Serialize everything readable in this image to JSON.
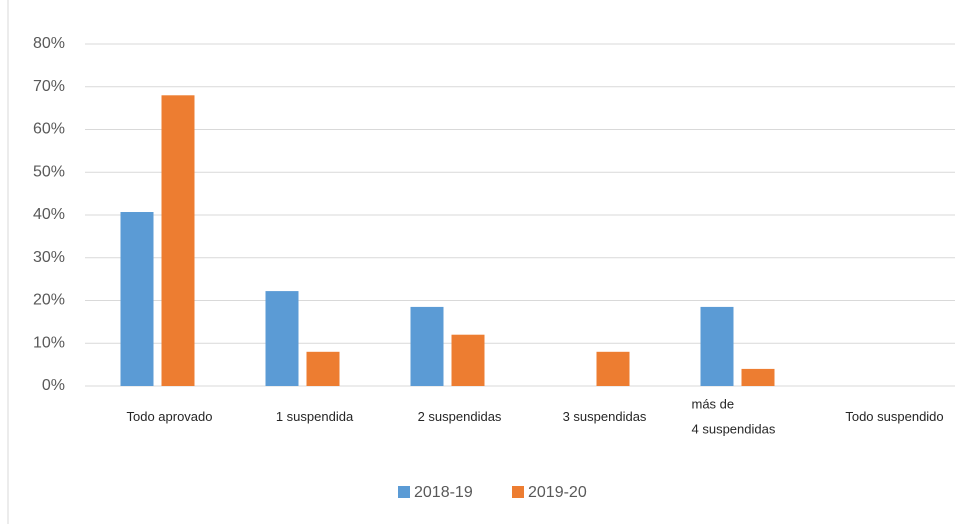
{
  "chart_data": {
    "type": "bar",
    "categories": [
      "Todo aprovado",
      "1 suspendida",
      "2 suspendidas",
      "3 suspendidas",
      "más de\n4 suspendidas",
      "Todo suspendido"
    ],
    "series": [
      {
        "name": "2018-19",
        "color": "#5b9bd5",
        "values": [
          40.7,
          22.2,
          18.5,
          0,
          18.5,
          0
        ]
      },
      {
        "name": "2019-20",
        "color": "#ed7d31",
        "values": [
          68,
          8,
          12,
          8,
          4,
          0
        ]
      }
    ],
    "ylim": [
      0,
      80
    ],
    "yticks": [
      {
        "value": 0,
        "label": "0%"
      },
      {
        "value": 10,
        "label": "10%"
      },
      {
        "value": 20,
        "label": "20%"
      },
      {
        "value": 30,
        "label": "30%"
      },
      {
        "value": 40,
        "label": "40%"
      },
      {
        "value": 50,
        "label": "50%"
      },
      {
        "value": 60,
        "label": "60%"
      },
      {
        "value": 70,
        "label": "70%"
      },
      {
        "value": 80,
        "label": "80%"
      }
    ],
    "grid": true,
    "legend": "bottom"
  }
}
